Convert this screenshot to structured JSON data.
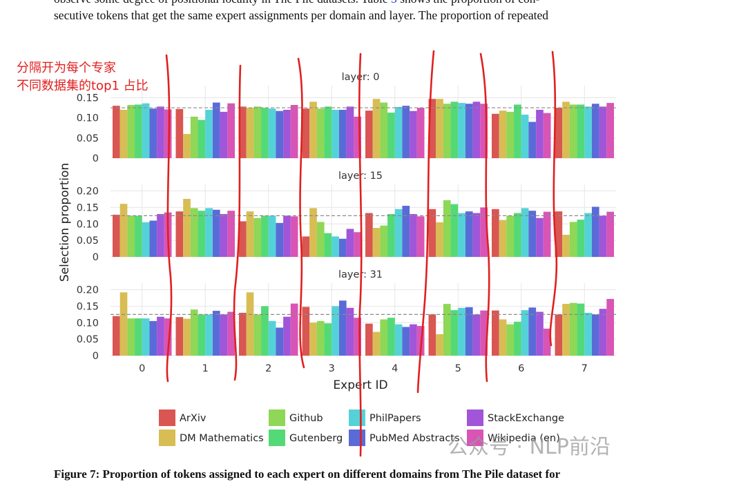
{
  "document": {
    "line1_before": "observe some degree of positional locality in The Pile datasets. Table ",
    "line1_ref": "5",
    "line1_after": " shows the proportion of con-",
    "line2": "secutive tokens that get the same expert assignments per domain and layer. The proportion of repeated",
    "caption": "Figure 7: Proportion of tokens assigned to each expert on different domains from The Pile dataset for"
  },
  "annotation": {
    "line1": "分隔开为每个专家",
    "line2": "不同数据集的top1 占比"
  },
  "watermark": "公众号 · NLP前沿",
  "chart_data": {
    "type": "bar",
    "xlabel": "Expert ID",
    "ylabel": "Selection proportion",
    "categories": [
      "0",
      "1",
      "2",
      "3",
      "4",
      "5",
      "6",
      "7"
    ],
    "reference_line": 0.125,
    "legend_position": "bottom",
    "domains": [
      {
        "name": "ArXiv",
        "color": "#d95652"
      },
      {
        "name": "DM Mathematics",
        "color": "#d8bd55"
      },
      {
        "name": "Github",
        "color": "#8fd756"
      },
      {
        "name": "Gutenberg",
        "color": "#54d977"
      },
      {
        "name": "PhilPapers",
        "color": "#55d2d8"
      },
      {
        "name": "PubMed Abstracts",
        "color": "#5a6bd8"
      },
      {
        "name": "StackExchange",
        "color": "#a155d8"
      },
      {
        "name": "Wikipedia (en)",
        "color": "#d855b6"
      }
    ],
    "legend_order": [
      0,
      2,
      4,
      6,
      1,
      3,
      5,
      7
    ],
    "panels": [
      {
        "title": "layer: 0",
        "ylim": [
          0,
          0.18
        ],
        "yticks": [
          {
            "v": 0,
            "label": "0"
          },
          {
            "v": 0.05,
            "label": "0.05"
          },
          {
            "v": 0.1,
            "label": "0.10"
          },
          {
            "v": 0.15,
            "label": "0.15"
          }
        ],
        "values": [
          [
            0.13,
            0.12,
            0.132,
            0.133,
            0.136,
            0.123,
            0.128,
            0.121
          ],
          [
            0.122,
            0.06,
            0.103,
            0.095,
            0.12,
            0.138,
            0.115,
            0.136
          ],
          [
            0.128,
            0.125,
            0.128,
            0.125,
            0.123,
            0.117,
            0.12,
            0.132
          ],
          [
            0.123,
            0.14,
            0.123,
            0.128,
            0.12,
            0.12,
            0.128,
            0.103
          ],
          [
            0.118,
            0.147,
            0.138,
            0.113,
            0.127,
            0.13,
            0.117,
            0.125
          ],
          [
            0.147,
            0.147,
            0.135,
            0.14,
            0.137,
            0.135,
            0.14,
            0.135
          ],
          [
            0.11,
            0.118,
            0.115,
            0.133,
            0.108,
            0.09,
            0.12,
            0.112
          ],
          [
            0.125,
            0.14,
            0.133,
            0.133,
            0.128,
            0.135,
            0.128,
            0.137
          ]
        ]
      },
      {
        "title": "layer: 15",
        "ylim": [
          0,
          0.22
        ],
        "yticks": [
          {
            "v": 0,
            "label": "0"
          },
          {
            "v": 0.05,
            "label": "0.05"
          },
          {
            "v": 0.1,
            "label": "0.10"
          },
          {
            "v": 0.15,
            "label": "0.15"
          },
          {
            "v": 0.2,
            "label": "0.20"
          }
        ],
        "values": [
          [
            0.128,
            0.161,
            0.125,
            0.125,
            0.105,
            0.11,
            0.13,
            0.135
          ],
          [
            0.138,
            0.176,
            0.148,
            0.14,
            0.148,
            0.143,
            0.13,
            0.14
          ],
          [
            0.108,
            0.138,
            0.118,
            0.125,
            0.125,
            0.103,
            0.125,
            0.123
          ],
          [
            0.062,
            0.148,
            0.106,
            0.072,
            0.062,
            0.055,
            0.085,
            0.075
          ],
          [
            0.133,
            0.088,
            0.095,
            0.13,
            0.145,
            0.155,
            0.13,
            0.123
          ],
          [
            0.145,
            0.105,
            0.172,
            0.16,
            0.133,
            0.138,
            0.133,
            0.15
          ],
          [
            0.145,
            0.112,
            0.125,
            0.133,
            0.148,
            0.14,
            0.118,
            0.137
          ],
          [
            0.138,
            0.067,
            0.106,
            0.113,
            0.133,
            0.152,
            0.125,
            0.137
          ]
        ]
      },
      {
        "title": "layer: 31",
        "ylim": [
          0,
          0.22
        ],
        "yticks": [
          {
            "v": 0,
            "label": "0"
          },
          {
            "v": 0.05,
            "label": "0.05"
          },
          {
            "v": 0.1,
            "label": "0.10"
          },
          {
            "v": 0.15,
            "label": "0.15"
          },
          {
            "v": 0.2,
            "label": "0.20"
          }
        ],
        "values": [
          [
            0.12,
            0.192,
            0.113,
            0.113,
            0.113,
            0.105,
            0.118,
            0.113
          ],
          [
            0.117,
            0.112,
            0.14,
            0.125,
            0.125,
            0.136,
            0.125,
            0.133
          ],
          [
            0.13,
            0.192,
            0.125,
            0.15,
            0.105,
            0.085,
            0.118,
            0.158
          ],
          [
            0.148,
            0.1,
            0.105,
            0.098,
            0.15,
            0.167,
            0.145,
            0.115
          ],
          [
            0.097,
            0.072,
            0.11,
            0.115,
            0.095,
            0.087,
            0.095,
            0.09
          ],
          [
            0.125,
            0.065,
            0.157,
            0.138,
            0.145,
            0.147,
            0.125,
            0.137
          ],
          [
            0.137,
            0.11,
            0.095,
            0.103,
            0.138,
            0.146,
            0.133,
            0.082
          ],
          [
            0.125,
            0.157,
            0.16,
            0.158,
            0.13,
            0.125,
            0.142,
            0.172
          ]
        ]
      }
    ]
  }
}
